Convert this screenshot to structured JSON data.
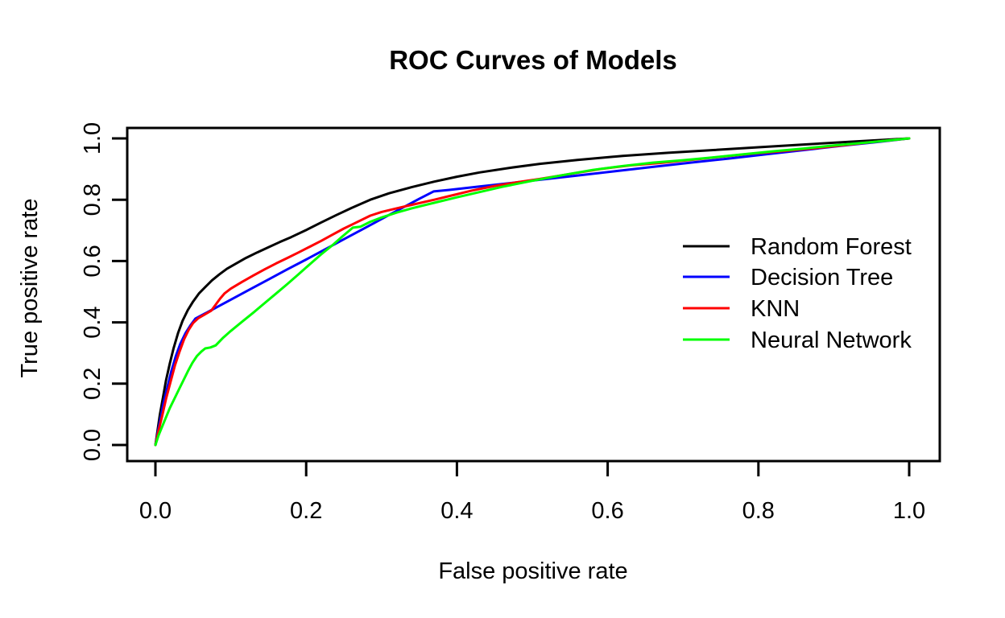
{
  "figure": {
    "title": "ROC Curves of Models",
    "xlabel": "False positive rate",
    "ylabel": "True positive rate"
  },
  "chart_data": {
    "type": "line",
    "title": "ROC Curves of Models",
    "xlabel": "False positive rate",
    "ylabel": "True positive rate",
    "xlim": [
      0.0,
      1.0
    ],
    "ylim": [
      0.0,
      1.0
    ],
    "x_ticks": [
      "0.0",
      "0.2",
      "0.4",
      "0.6",
      "0.8",
      "1.0"
    ],
    "y_ticks": [
      "0.0",
      "0.2",
      "0.4",
      "0.6",
      "0.8",
      "1.0"
    ],
    "grid": false,
    "background": "#ffffff",
    "axis_color": "#000000",
    "legend": {
      "position": "right-middle",
      "border": "none",
      "entries": [
        {
          "label": "Random Forest",
          "color": "#000000"
        },
        {
          "label": "Decision Tree",
          "color": "#0000FF"
        },
        {
          "label": "KNN",
          "color": "#FF0000"
        },
        {
          "label": "Neural Network",
          "color": "#00FF00"
        }
      ]
    },
    "series": [
      {
        "name": "Random Forest",
        "color": "#000000",
        "points": [
          [
            0,
            0
          ],
          [
            0.003,
            0.05
          ],
          [
            0.006,
            0.1
          ],
          [
            0.01,
            0.155
          ],
          [
            0.014,
            0.21
          ],
          [
            0.019,
            0.265
          ],
          [
            0.024,
            0.315
          ],
          [
            0.03,
            0.365
          ],
          [
            0.036,
            0.405
          ],
          [
            0.043,
            0.44
          ],
          [
            0.05,
            0.468
          ],
          [
            0.058,
            0.495
          ],
          [
            0.066,
            0.515
          ],
          [
            0.075,
            0.537
          ],
          [
            0.085,
            0.557
          ],
          [
            0.095,
            0.575
          ],
          [
            0.105,
            0.589
          ],
          [
            0.12,
            0.61
          ],
          [
            0.135,
            0.628
          ],
          [
            0.15,
            0.645
          ],
          [
            0.165,
            0.662
          ],
          [
            0.18,
            0.678
          ],
          [
            0.2,
            0.701
          ],
          [
            0.22,
            0.726
          ],
          [
            0.24,
            0.75
          ],
          [
            0.26,
            0.773
          ],
          [
            0.285,
            0.8
          ],
          [
            0.31,
            0.821
          ],
          [
            0.34,
            0.841
          ],
          [
            0.37,
            0.859
          ],
          [
            0.4,
            0.875
          ],
          [
            0.43,
            0.889
          ],
          [
            0.47,
            0.904
          ],
          [
            0.51,
            0.917
          ],
          [
            0.56,
            0.93
          ],
          [
            0.62,
            0.943
          ],
          [
            0.68,
            0.953
          ],
          [
            0.74,
            0.962
          ],
          [
            0.8,
            0.971
          ],
          [
            0.86,
            0.98
          ],
          [
            0.92,
            0.989
          ],
          [
            1,
            1
          ]
        ]
      },
      {
        "name": "Decision Tree",
        "color": "#0000FF",
        "points": [
          [
            0,
            0
          ],
          [
            0.003,
            0.04
          ],
          [
            0.007,
            0.09
          ],
          [
            0.011,
            0.14
          ],
          [
            0.016,
            0.19
          ],
          [
            0.021,
            0.24
          ],
          [
            0.027,
            0.29
          ],
          [
            0.033,
            0.33
          ],
          [
            0.04,
            0.365
          ],
          [
            0.047,
            0.392
          ],
          [
            0.053,
            0.412
          ],
          [
            0.075,
            0.441
          ],
          [
            0.1,
            0.474
          ],
          [
            0.125,
            0.507
          ],
          [
            0.15,
            0.54
          ],
          [
            0.175,
            0.573
          ],
          [
            0.2,
            0.605
          ],
          [
            0.225,
            0.638
          ],
          [
            0.25,
            0.671
          ],
          [
            0.275,
            0.704
          ],
          [
            0.3,
            0.737
          ],
          [
            0.325,
            0.77
          ],
          [
            0.35,
            0.803
          ],
          [
            0.369,
            0.827
          ],
          [
            0.39,
            0.832
          ],
          [
            0.43,
            0.843
          ],
          [
            0.47,
            0.854
          ],
          [
            0.51,
            0.865
          ],
          [
            0.56,
            0.879
          ],
          [
            0.61,
            0.893
          ],
          [
            0.66,
            0.907
          ],
          [
            0.71,
            0.921
          ],
          [
            0.76,
            0.934
          ],
          [
            0.81,
            0.948
          ],
          [
            0.86,
            0.962
          ],
          [
            0.91,
            0.976
          ],
          [
            0.96,
            0.989
          ],
          [
            1,
            1
          ]
        ]
      },
      {
        "name": "KNN",
        "color": "#FF0000",
        "points": [
          [
            0,
            0
          ],
          [
            0.004,
            0.045
          ],
          [
            0.009,
            0.095
          ],
          [
            0.014,
            0.15
          ],
          [
            0.02,
            0.205
          ],
          [
            0.026,
            0.26
          ],
          [
            0.032,
            0.305
          ],
          [
            0.038,
            0.345
          ],
          [
            0.044,
            0.375
          ],
          [
            0.05,
            0.398
          ],
          [
            0.057,
            0.414
          ],
          [
            0.065,
            0.425
          ],
          [
            0.074,
            0.438
          ],
          [
            0.08,
            0.458
          ],
          [
            0.086,
            0.478
          ],
          [
            0.092,
            0.495
          ],
          [
            0.1,
            0.51
          ],
          [
            0.115,
            0.532
          ],
          [
            0.13,
            0.553
          ],
          [
            0.145,
            0.573
          ],
          [
            0.16,
            0.592
          ],
          [
            0.175,
            0.61
          ],
          [
            0.19,
            0.628
          ],
          [
            0.205,
            0.647
          ],
          [
            0.22,
            0.666
          ],
          [
            0.235,
            0.686
          ],
          [
            0.25,
            0.706
          ],
          [
            0.265,
            0.724
          ],
          [
            0.285,
            0.748
          ],
          [
            0.3,
            0.76
          ],
          [
            0.32,
            0.772
          ],
          [
            0.345,
            0.786
          ],
          [
            0.37,
            0.8
          ],
          [
            0.395,
            0.815
          ],
          [
            0.42,
            0.83
          ],
          [
            0.45,
            0.845
          ],
          [
            0.48,
            0.857
          ],
          [
            0.51,
            0.868
          ],
          [
            0.55,
            0.884
          ],
          [
            0.59,
            0.9
          ],
          [
            0.63,
            0.912
          ],
          [
            0.67,
            0.92
          ],
          [
            0.71,
            0.93
          ],
          [
            0.75,
            0.94
          ],
          [
            0.79,
            0.95
          ],
          [
            0.83,
            0.958
          ],
          [
            0.87,
            0.967
          ],
          [
            0.91,
            0.977
          ],
          [
            0.95,
            0.988
          ],
          [
            1,
            1
          ]
        ]
      },
      {
        "name": "Neural Network",
        "color": "#00FF00",
        "points": [
          [
            0,
            0
          ],
          [
            0.004,
            0.03
          ],
          [
            0.009,
            0.06
          ],
          [
            0.014,
            0.09
          ],
          [
            0.019,
            0.12
          ],
          [
            0.025,
            0.15
          ],
          [
            0.031,
            0.18
          ],
          [
            0.037,
            0.21
          ],
          [
            0.043,
            0.24
          ],
          [
            0.049,
            0.268
          ],
          [
            0.055,
            0.29
          ],
          [
            0.061,
            0.305
          ],
          [
            0.066,
            0.315
          ],
          [
            0.073,
            0.318
          ],
          [
            0.08,
            0.325
          ],
          [
            0.09,
            0.35
          ],
          [
            0.1,
            0.372
          ],
          [
            0.115,
            0.402
          ],
          [
            0.13,
            0.432
          ],
          [
            0.145,
            0.463
          ],
          [
            0.16,
            0.494
          ],
          [
            0.175,
            0.525
          ],
          [
            0.19,
            0.557
          ],
          [
            0.205,
            0.59
          ],
          [
            0.22,
            0.622
          ],
          [
            0.235,
            0.652
          ],
          [
            0.248,
            0.68
          ],
          [
            0.262,
            0.709
          ],
          [
            0.272,
            0.712
          ],
          [
            0.285,
            0.728
          ],
          [
            0.3,
            0.742
          ],
          [
            0.32,
            0.758
          ],
          [
            0.34,
            0.772
          ],
          [
            0.37,
            0.79
          ],
          [
            0.4,
            0.808
          ],
          [
            0.43,
            0.825
          ],
          [
            0.46,
            0.842
          ],
          [
            0.5,
            0.862
          ],
          [
            0.54,
            0.88
          ],
          [
            0.58,
            0.897
          ],
          [
            0.62,
            0.91
          ],
          [
            0.66,
            0.921
          ],
          [
            0.7,
            0.929
          ],
          [
            0.74,
            0.938
          ],
          [
            0.78,
            0.948
          ],
          [
            0.82,
            0.958
          ],
          [
            0.86,
            0.967
          ],
          [
            0.9,
            0.977
          ],
          [
            0.95,
            0.988
          ],
          [
            1,
            1
          ]
        ]
      }
    ]
  }
}
